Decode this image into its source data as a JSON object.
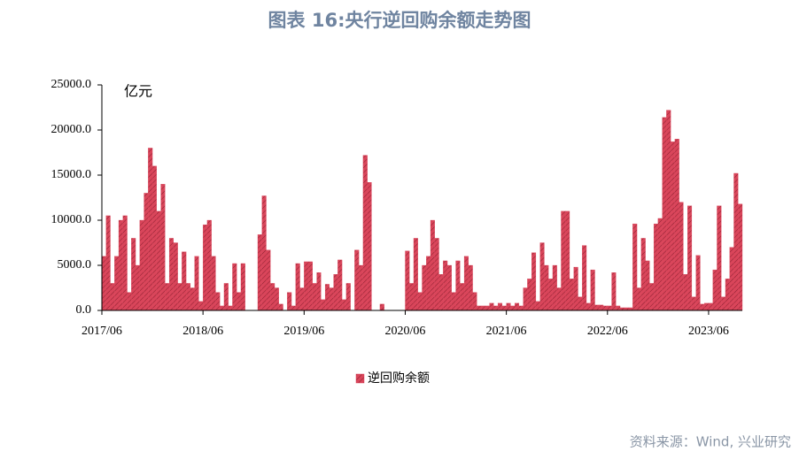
{
  "chart_data": {
    "type": "bar",
    "title": "图表 16:央行逆回购余额走势图",
    "unit_label": "亿元",
    "categories": [
      "2017/06",
      null,
      null,
      null,
      null,
      null,
      null,
      null,
      null,
      null,
      null,
      null,
      null,
      null,
      null,
      null,
      null,
      null,
      null,
      null,
      null,
      null,
      null,
      null,
      "2018/06",
      null,
      null,
      null,
      null,
      null,
      null,
      null,
      null,
      null,
      null,
      null,
      null,
      null,
      null,
      null,
      null,
      null,
      null,
      null,
      null,
      null,
      null,
      null,
      "2019/06",
      null,
      null,
      null,
      null,
      null,
      null,
      null,
      null,
      null,
      null,
      null,
      null,
      null,
      null,
      null,
      null,
      null,
      null,
      null,
      null,
      null,
      null,
      null,
      "2020/06",
      null,
      null,
      null,
      null,
      null,
      null,
      null,
      null,
      null,
      null,
      null,
      null,
      null,
      null,
      null,
      null,
      null,
      null,
      null,
      null,
      null,
      null,
      null,
      "2021/06",
      null,
      null,
      null,
      null,
      null,
      null,
      null,
      null,
      null,
      null,
      null,
      null,
      null,
      null,
      null,
      null,
      null,
      null,
      null,
      null,
      null,
      null,
      null,
      "2022/06",
      null,
      null,
      null,
      null,
      null,
      null,
      null,
      null,
      null,
      null,
      null,
      null,
      null,
      null,
      null,
      null,
      null,
      null,
      null,
      null,
      null,
      null,
      null,
      "2023/06",
      null,
      null,
      null,
      null,
      null,
      null,
      null
    ],
    "series": [
      {
        "name": "逆回购余额",
        "color": "#d9455a",
        "values": [
          6000,
          10500,
          3000,
          6000,
          10000,
          10500,
          2000,
          8000,
          5000,
          10000,
          13000,
          18000,
          16000,
          11000,
          14000,
          3000,
          8000,
          7500,
          3000,
          6500,
          3000,
          2500,
          6000,
          1000,
          9500,
          10000,
          6000,
          2000,
          500,
          3000,
          500,
          5200,
          2000,
          5200,
          0,
          0,
          0,
          8400,
          12700,
          6700,
          3000,
          2500,
          700,
          0,
          2000,
          500,
          5200,
          2500,
          5400,
          5400,
          3000,
          4200,
          1200,
          2900,
          2500,
          4000,
          5600,
          1200,
          3000,
          0,
          6700,
          5000,
          17200,
          14200,
          0,
          0,
          700,
          0,
          0,
          0,
          0,
          0,
          6600,
          3000,
          8000,
          2000,
          5000,
          6000,
          10000,
          8000,
          4000,
          5500,
          5000,
          2000,
          5500,
          3000,
          6000,
          5000,
          2000,
          500,
          500,
          500,
          800,
          500,
          800,
          500,
          800,
          500,
          800,
          500,
          2500,
          3500,
          6400,
          1000,
          7500,
          5000,
          3500,
          5000,
          2500,
          11000,
          11000,
          3500,
          4800,
          1500,
          7200,
          800,
          4500,
          600,
          600,
          500,
          500,
          4200,
          500,
          300,
          300,
          300,
          9600,
          2500,
          8000,
          5500,
          3000,
          9600,
          10200,
          21400,
          22200,
          18700,
          19000,
          12000,
          4000,
          11600,
          1500,
          6100,
          700,
          800,
          800,
          4500,
          11600,
          1500,
          3500,
          7000,
          15200,
          11800
        ]
      }
    ],
    "ylim": [
      0,
      25000
    ],
    "yticks": [
      {
        "value": 0,
        "label": "0.0"
      },
      {
        "value": 5000,
        "label": "5000.0"
      },
      {
        "value": 10000,
        "label": "10000.0"
      },
      {
        "value": 15000,
        "label": "15000.0"
      },
      {
        "value": 20000,
        "label": "20000.0"
      },
      {
        "value": 25000,
        "label": "25000.0"
      }
    ],
    "legend": "bottom"
  },
  "source": "资料来源：Wind, 兴业研究"
}
